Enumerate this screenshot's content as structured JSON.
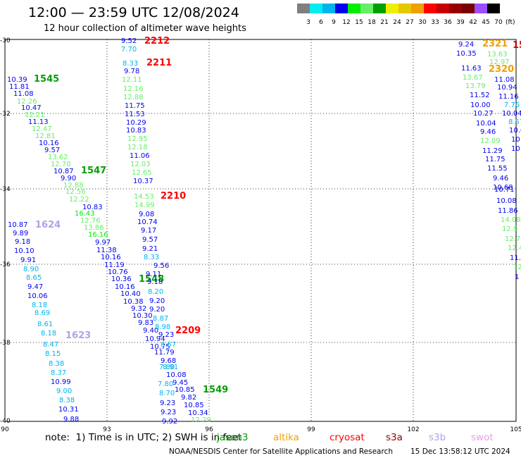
{
  "title": "12:00 — 23:59 UTC 12/08/2024",
  "subtitle": "12 hour collection of altimeter wave heights",
  "colorbar": {
    "labels": [
      "3",
      "6",
      "9",
      "12",
      "15",
      "18",
      "21",
      "24",
      "27",
      "30",
      "33",
      "36",
      "39",
      "42",
      "45",
      "70"
    ],
    "colors": [
      "#7f7f7f",
      "#00eeee",
      "#00b4f0",
      "#0000f0",
      "#00ee00",
      "#66ee66",
      "#00a000",
      "#eeee00",
      "#e6c800",
      "#f0a000",
      "#ff0000",
      "#c80000",
      "#960000",
      "#780000",
      "#9b4dff",
      "#000000"
    ],
    "unit": "(ft)"
  },
  "map": {
    "lon_labels": [
      "90",
      "93",
      "96",
      "99",
      "102",
      "105"
    ],
    "lat_labels": [
      "-30",
      "-32",
      "-34",
      "-36",
      "-38",
      "-40"
    ],
    "passes": [
      {
        "label": "2212",
        "color": "#ff0000"
      },
      {
        "label": "2211",
        "color": "#ff0000"
      },
      {
        "label": "1545",
        "color": "#00a000"
      },
      {
        "label": "1547",
        "color": "#00a000"
      },
      {
        "label": "2210",
        "color": "#ff0000"
      },
      {
        "label": "1624",
        "color": "#b4a0e6"
      },
      {
        "label": "1548",
        "color": "#00a000"
      },
      {
        "label": "2209",
        "color": "#ff0000"
      },
      {
        "label": "1623",
        "color": "#b4a0e6"
      },
      {
        "label": "1549",
        "color": "#00a000"
      },
      {
        "label": "2321",
        "color": "#f0a000"
      },
      {
        "label": "2320",
        "color": "#f0a000"
      },
      {
        "label": "15",
        "color": "#c80000"
      }
    ],
    "wave_heights": [
      {
        "v": "9.52",
        "c": "#0000f0"
      },
      {
        "v": "7.70",
        "c": "#00b4f0"
      },
      {
        "v": "8.33",
        "c": "#00b4f0"
      },
      {
        "v": "9.78",
        "c": "#0000f0"
      },
      {
        "v": "12.11",
        "c": "#66ee66"
      },
      {
        "v": "12.16",
        "c": "#66ee66"
      },
      {
        "v": "12.88",
        "c": "#66ee66"
      },
      {
        "v": "11.75",
        "c": "#0000f0"
      },
      {
        "v": "11.53",
        "c": "#0000f0"
      },
      {
        "v": "10.29",
        "c": "#0000f0"
      },
      {
        "v": "10.83",
        "c": "#0000f0"
      },
      {
        "v": "12.95",
        "c": "#66ee66"
      },
      {
        "v": "12.18",
        "c": "#66ee66"
      },
      {
        "v": "11.06",
        "c": "#0000f0"
      },
      {
        "v": "12.03",
        "c": "#66ee66"
      },
      {
        "v": "12.65",
        "c": "#66ee66"
      },
      {
        "v": "10.37",
        "c": "#0000f0"
      },
      {
        "v": "10.39",
        "c": "#0000f0"
      },
      {
        "v": "11.81",
        "c": "#0000f0"
      },
      {
        "v": "11.08",
        "c": "#0000f0"
      },
      {
        "v": "12.26",
        "c": "#66ee66"
      },
      {
        "v": "10.47",
        "c": "#0000f0"
      },
      {
        "v": "12.21",
        "c": "#66ee66"
      },
      {
        "v": "11.13",
        "c": "#0000f0"
      },
      {
        "v": "12.47",
        "c": "#66ee66"
      },
      {
        "v": "12.81",
        "c": "#66ee66"
      },
      {
        "v": "10.16",
        "c": "#0000f0"
      },
      {
        "v": "9.57",
        "c": "#0000f0"
      },
      {
        "v": "13.62",
        "c": "#66ee66"
      },
      {
        "v": "12.70",
        "c": "#66ee66"
      },
      {
        "v": "10.87",
        "c": "#0000f0"
      },
      {
        "v": "9.90",
        "c": "#0000f0"
      },
      {
        "v": "12.88",
        "c": "#66ee66"
      },
      {
        "v": "12.56",
        "c": "#66ee66"
      },
      {
        "v": "12.22",
        "c": "#66ee66"
      },
      {
        "v": "10.83",
        "c": "#0000f0"
      },
      {
        "v": "16.43",
        "c": "#00ee00"
      },
      {
        "v": "12.76",
        "c": "#66ee66"
      },
      {
        "v": "13.86",
        "c": "#66ee66"
      },
      {
        "v": "16.16",
        "c": "#00ee00"
      },
      {
        "v": "9.97",
        "c": "#0000f0"
      },
      {
        "v": "11.38",
        "c": "#0000f0"
      },
      {
        "v": "10.16",
        "c": "#0000f0"
      },
      {
        "v": "11.19",
        "c": "#0000f0"
      },
      {
        "v": "10.76",
        "c": "#0000f0"
      },
      {
        "v": "10.36",
        "c": "#0000f0"
      },
      {
        "v": "10.16",
        "c": "#0000f0"
      },
      {
        "v": "10.40",
        "c": "#0000f0"
      },
      {
        "v": "10.38",
        "c": "#0000f0"
      },
      {
        "v": "9.32",
        "c": "#0000f0"
      },
      {
        "v": "10.30",
        "c": "#0000f0"
      },
      {
        "v": "9.83",
        "c": "#0000f0"
      },
      {
        "v": "9.40",
        "c": "#0000f0"
      },
      {
        "v": "10.94",
        "c": "#0000f0"
      },
      {
        "v": "10.75",
        "c": "#0000f0"
      },
      {
        "v": "11.79",
        "c": "#0000f0"
      },
      {
        "v": "9.68",
        "c": "#0000f0"
      },
      {
        "v": "8.91",
        "c": "#00b4f0"
      },
      {
        "v": "10.08",
        "c": "#0000f0"
      },
      {
        "v": "9.45",
        "c": "#0000f0"
      },
      {
        "v": "10.85",
        "c": "#0000f0"
      },
      {
        "v": "9.82",
        "c": "#0000f0"
      },
      {
        "v": "10.85",
        "c": "#0000f0"
      },
      {
        "v": "10.34",
        "c": "#0000f0"
      },
      {
        "v": "12.29",
        "c": "#66ee66"
      },
      {
        "v": "14.53",
        "c": "#66ee66"
      },
      {
        "v": "14.99",
        "c": "#66ee66"
      },
      {
        "v": "9.08",
        "c": "#0000f0"
      },
      {
        "v": "10.74",
        "c": "#0000f0"
      },
      {
        "v": "9.17",
        "c": "#0000f0"
      },
      {
        "v": "9.57",
        "c": "#0000f0"
      },
      {
        "v": "9.21",
        "c": "#0000f0"
      },
      {
        "v": "8.33",
        "c": "#00b4f0"
      },
      {
        "v": "9.56",
        "c": "#0000f0"
      },
      {
        "v": "9.11",
        "c": "#0000f0"
      },
      {
        "v": "9.18",
        "c": "#0000f0"
      },
      {
        "v": "8.20",
        "c": "#00b4f0"
      },
      {
        "v": "9.20",
        "c": "#0000f0"
      },
      {
        "v": "9.20",
        "c": "#0000f0"
      },
      {
        "v": "8.87",
        "c": "#00b4f0"
      },
      {
        "v": "8.98",
        "c": "#00b4f0"
      },
      {
        "v": "9.23",
        "c": "#0000f0"
      },
      {
        "v": "8.57",
        "c": "#00b4f0"
      },
      {
        "v": "7.80",
        "c": "#00b4f0"
      },
      {
        "v": "7.80",
        "c": "#00b4f0"
      },
      {
        "v": "8.70",
        "c": "#00b4f0"
      },
      {
        "v": "9.23",
        "c": "#0000f0"
      },
      {
        "v": "9.23",
        "c": "#0000f0"
      },
      {
        "v": "9.92",
        "c": "#0000f0"
      },
      {
        "v": "10.87",
        "c": "#0000f0"
      },
      {
        "v": "9.89",
        "c": "#0000f0"
      },
      {
        "v": "9.18",
        "c": "#0000f0"
      },
      {
        "v": "10.10",
        "c": "#0000f0"
      },
      {
        "v": "9.91",
        "c": "#0000f0"
      },
      {
        "v": "8.90",
        "c": "#00b4f0"
      },
      {
        "v": "8.65",
        "c": "#00b4f0"
      },
      {
        "v": "9.47",
        "c": "#0000f0"
      },
      {
        "v": "10.06",
        "c": "#0000f0"
      },
      {
        "v": "8.18",
        "c": "#00b4f0"
      },
      {
        "v": "8.69",
        "c": "#00b4f0"
      },
      {
        "v": "8.61",
        "c": "#00b4f0"
      },
      {
        "v": "8.18",
        "c": "#00b4f0"
      },
      {
        "v": "8.47",
        "c": "#00b4f0"
      },
      {
        "v": "8.15",
        "c": "#00b4f0"
      },
      {
        "v": "8.38",
        "c": "#00b4f0"
      },
      {
        "v": "8.37",
        "c": "#00b4f0"
      },
      {
        "v": "10.99",
        "c": "#0000f0"
      },
      {
        "v": "9.00",
        "c": "#00b4f0"
      },
      {
        "v": "8.38",
        "c": "#00b4f0"
      },
      {
        "v": "10.31",
        "c": "#0000f0"
      },
      {
        "v": "9.88",
        "c": "#0000f0"
      },
      {
        "v": "9.24",
        "c": "#0000f0"
      },
      {
        "v": "10.35",
        "c": "#0000f0"
      },
      {
        "v": "13.63",
        "c": "#66ee66"
      },
      {
        "v": "12.97",
        "c": "#66ee66"
      },
      {
        "v": "11.63",
        "c": "#0000f0"
      },
      {
        "v": "13.67",
        "c": "#66ee66"
      },
      {
        "v": "11.08",
        "c": "#0000f0"
      },
      {
        "v": "13.79",
        "c": "#66ee66"
      },
      {
        "v": "10.94",
        "c": "#0000f0"
      },
      {
        "v": "11.52",
        "c": "#0000f0"
      },
      {
        "v": "11.16",
        "c": "#0000f0"
      },
      {
        "v": "10.00",
        "c": "#0000f0"
      },
      {
        "v": "7.76",
        "c": "#00b4f0"
      },
      {
        "v": "10.27",
        "c": "#0000f0"
      },
      {
        "v": "10.04",
        "c": "#0000f0"
      },
      {
        "v": "10.04",
        "c": "#0000f0"
      },
      {
        "v": "8.57",
        "c": "#00b4f0"
      },
      {
        "v": "9.46",
        "c": "#0000f0"
      },
      {
        "v": "10.6",
        "c": "#0000f0"
      },
      {
        "v": "12.09",
        "c": "#66ee66"
      },
      {
        "v": "10",
        "c": "#0000f0"
      },
      {
        "v": "11.29",
        "c": "#0000f0"
      },
      {
        "v": "10",
        "c": "#0000f0"
      },
      {
        "v": "11.75",
        "c": "#0000f0"
      },
      {
        "v": "11.55",
        "c": "#0000f0"
      },
      {
        "v": "9.46",
        "c": "#0000f0"
      },
      {
        "v": "10.68",
        "c": "#0000f0"
      },
      {
        "v": "10.71",
        "c": "#0000f0"
      },
      {
        "v": "10.08",
        "c": "#0000f0"
      },
      {
        "v": "11.86",
        "c": "#0000f0"
      },
      {
        "v": "14.08",
        "c": "#66ee66"
      },
      {
        "v": "12.9",
        "c": "#66ee66"
      },
      {
        "v": "12.7",
        "c": "#66ee66"
      },
      {
        "v": "12.4",
        "c": "#66ee66"
      },
      {
        "v": "11.",
        "c": "#0000f0"
      },
      {
        "v": "12",
        "c": "#66ee66"
      },
      {
        "v": "1",
        "c": "#0000f0"
      }
    ]
  },
  "note": "note:  1) Time is in UTC; 2) SWH is in feet",
  "satellites": [
    {
      "name": "jason3",
      "color": "#00a000"
    },
    {
      "name": "altika",
      "color": "#f0a000"
    },
    {
      "name": "cryosat",
      "color": "#ff0000"
    },
    {
      "name": "s3a",
      "color": "#960000"
    },
    {
      "name": "s3b",
      "color": "#b4a0e6"
    },
    {
      "name": "swot",
      "color": "#e6a0e6"
    }
  ],
  "footer": "NOAA/NESDIS Center for Satellite Applications and Research",
  "footer_date": "15 Dec 13:58:12 UTC 2024"
}
